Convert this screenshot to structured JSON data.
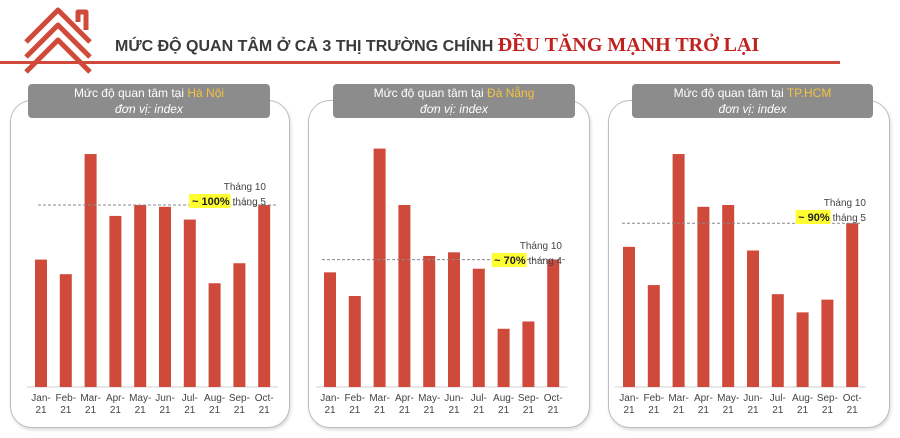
{
  "header": {
    "title_main": "MỨC ĐỘ QUAN TÂM Ở CẢ 3 THỊ TRƯỜNG CHÍNH",
    "title_highlight": "ĐỀU TĂNG MẠNH TRỞ LẠI",
    "accent_color": "#d04a3b",
    "highlight_color": "#c0231f"
  },
  "logo": {
    "icon": "house-chevron-logo"
  },
  "panels": [
    {
      "title_prefix": "Mức độ quan tâm tại",
      "city": "Hà Nội",
      "unit": "đơn vị: index"
    },
    {
      "title_prefix": "Mức độ quan tâm tại",
      "city": "Đà Nẵng",
      "unit": "đơn vị: index"
    },
    {
      "title_prefix": "Mức độ quan tâm tại",
      "city": "TP.HCM",
      "unit": "đơn vị: index"
    }
  ],
  "chart_data": [
    {
      "type": "bar",
      "title": "Mức độ quan tâm tại Hà Nội",
      "subtitle": "đơn vị: index",
      "categories": [
        "Jan-21",
        "Feb-21",
        "Mar-21",
        "Apr-21",
        "May-21",
        "Jun-21",
        "Jul-21",
        "Aug-21",
        "Sep-21",
        "Oct-21"
      ],
      "values": [
        70,
        62,
        128,
        94,
        100,
        99,
        92,
        57,
        68,
        100
      ],
      "bar_color": "#d04a3b",
      "reference_line": 100,
      "annotation": {
        "line1": "Tháng 10",
        "highlight": "~ 100%",
        "suffix": "tháng 5"
      },
      "grid": false
    },
    {
      "type": "bar",
      "title": "Mức độ quan tâm tại Đà Nẵng",
      "subtitle": "đơn vị: index",
      "categories": [
        "Jan-21",
        "Feb-21",
        "Mar-21",
        "Apr-21",
        "May-21",
        "Jun-21",
        "Jul-21",
        "Aug-21",
        "Sep-21",
        "Oct-21"
      ],
      "values": [
        63,
        50,
        131,
        100,
        72,
        74,
        65,
        32,
        36,
        70
      ],
      "bar_color": "#d04a3b",
      "reference_line": 70,
      "annotation": {
        "line1": "Tháng 10",
        "highlight": "~ 70%",
        "suffix": "tháng 4"
      },
      "grid": false
    },
    {
      "type": "bar",
      "title": "Mức độ quan tâm tại TP.HCM",
      "subtitle": "đơn vị: index",
      "categories": [
        "Jan-21",
        "Feb-21",
        "Mar-21",
        "Apr-21",
        "May-21",
        "Jun-21",
        "Jul-21",
        "Aug-21",
        "Sep-21",
        "Oct-21"
      ],
      "values": [
        77,
        56,
        128,
        99,
        100,
        75,
        51,
        41,
        48,
        90
      ],
      "bar_color": "#d04a3b",
      "reference_line": 90,
      "annotation": {
        "line1": "Tháng 10",
        "highlight": "~ 90%",
        "suffix": "tháng 5"
      },
      "grid": false
    }
  ]
}
